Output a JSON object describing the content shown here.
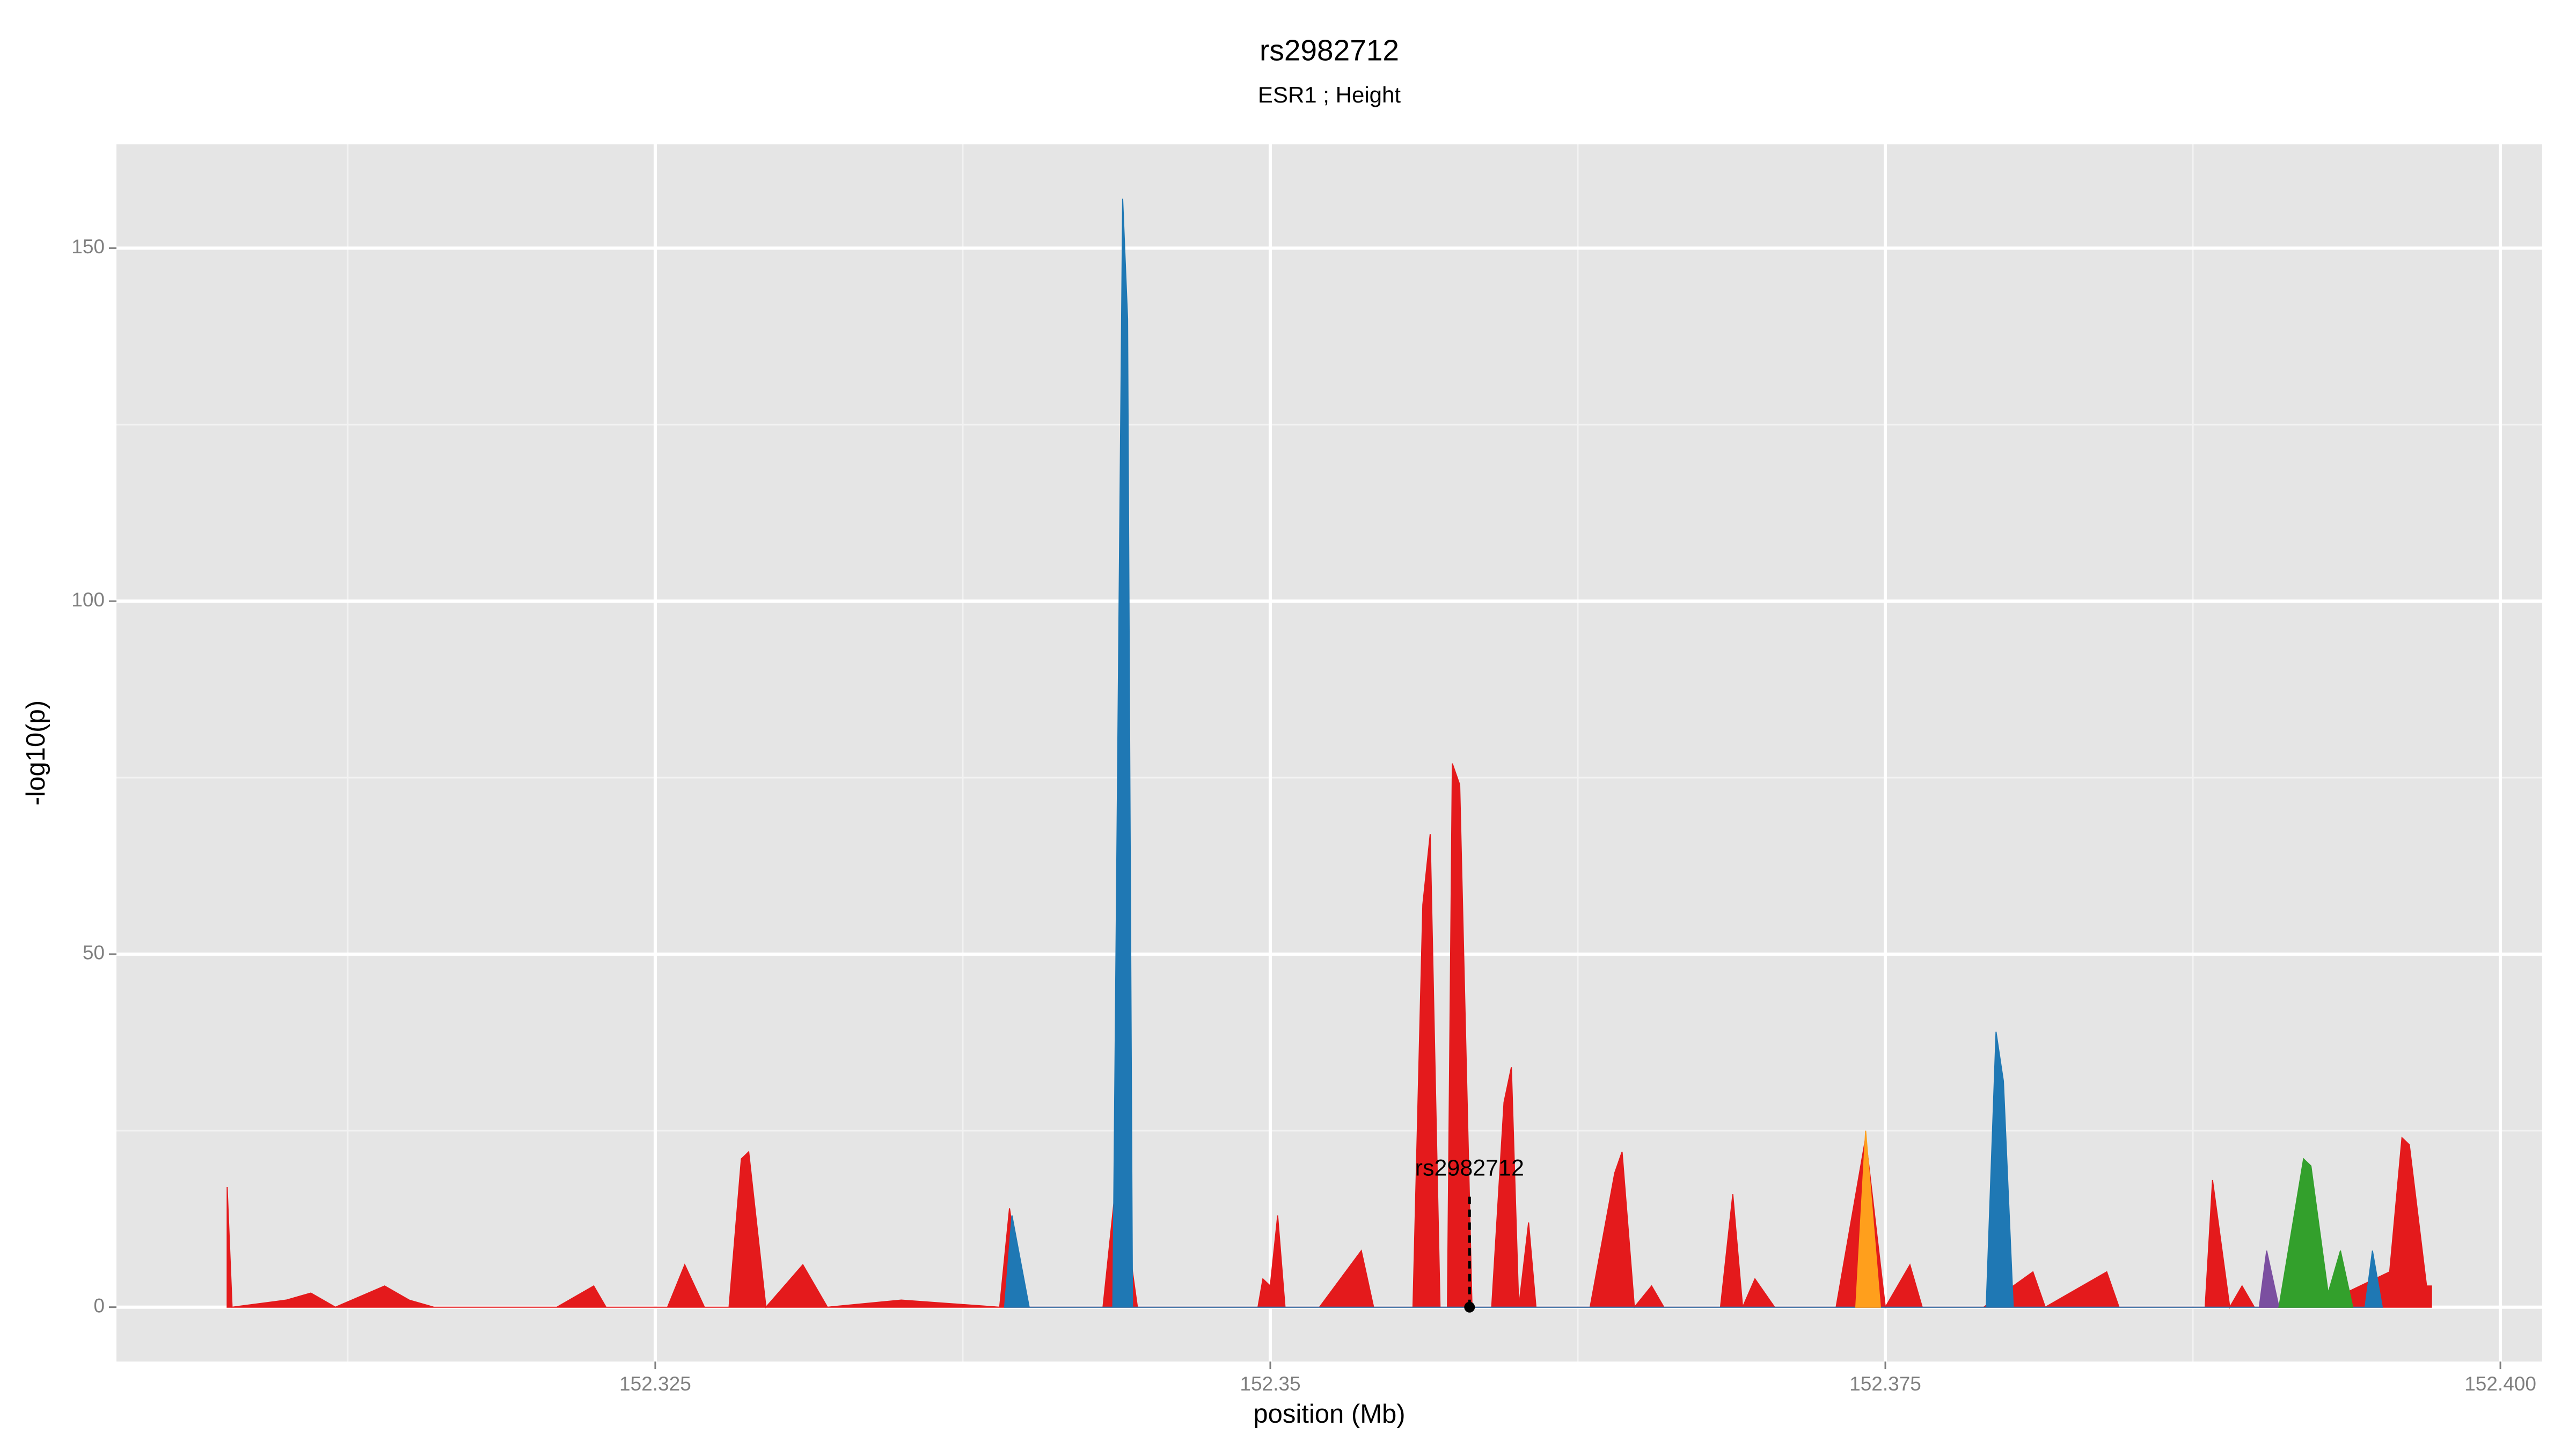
{
  "chart_data": {
    "type": "area",
    "title": "rs2982712",
    "subtitle": "ESR1 ; Height",
    "x_label": "position (Mb)",
    "y_label": "-log10(p)",
    "xlim": [
      152.3031,
      152.4017
    ],
    "ylim": [
      -7.7,
      164.7
    ],
    "xticks": [
      152.325,
      152.35,
      152.375,
      {
        "value": 152.4,
        "label": "152.400"
      }
    ],
    "yticks": [
      0,
      50,
      100,
      150
    ],
    "grid": true,
    "series": [
      {
        "name": "red",
        "color": "#e41a1c",
        "x": [
          152.3076,
          152.3078,
          152.31,
          152.311,
          152.312,
          152.314,
          152.315,
          152.316,
          152.321,
          152.3225,
          152.323,
          152.3255,
          152.3262,
          152.327,
          152.328,
          152.3285,
          152.3288,
          152.3295,
          152.331,
          152.332,
          152.335,
          152.339,
          152.3394,
          152.34,
          152.3432,
          152.3438,
          152.3446,
          152.3495,
          152.3497,
          152.35,
          152.3503,
          152.3506,
          152.352,
          152.3537,
          152.3542,
          152.3558,
          152.3562,
          152.3565,
          152.3569,
          152.3572,
          152.3574,
          152.3577,
          152.3582,
          152.359,
          152.3595,
          152.3598,
          152.3601,
          152.3605,
          152.3608,
          152.363,
          152.364,
          152.3643,
          152.3648,
          152.3655,
          152.366,
          152.3683,
          152.3688,
          152.3692,
          152.3697,
          152.3705,
          152.373,
          152.3742,
          152.375,
          152.376,
          152.3765,
          152.379,
          152.381,
          152.3815,
          152.384,
          152.3845,
          152.388,
          152.3883,
          152.389,
          152.3895,
          152.39,
          152.3918,
          152.3925,
          152.3955,
          152.396,
          152.3963,
          152.397,
          152.3972
        ],
        "values": [
          17,
          0,
          1,
          2,
          0,
          3,
          1,
          0,
          0,
          3,
          0,
          0,
          6,
          0,
          0,
          21,
          22,
          0,
          6,
          0,
          1,
          0,
          14,
          0,
          0,
          20,
          0,
          0,
          4,
          3,
          13,
          0,
          0,
          8,
          0,
          0,
          57,
          67,
          0,
          0,
          77,
          74,
          0,
          0,
          29,
          34,
          0,
          12,
          0,
          0,
          19,
          22,
          0,
          3,
          0,
          0,
          16,
          0,
          4,
          0,
          0,
          24,
          0,
          6,
          0,
          0,
          5,
          0,
          5,
          0,
          0,
          18,
          0,
          3,
          0,
          0,
          0,
          5,
          24,
          23,
          3,
          3
        ]
      },
      {
        "name": "blue",
        "color": "#1f78b4",
        "x": [
          152.3392,
          152.3395,
          152.3402,
          152.3436,
          152.344,
          152.3442,
          152.3444,
          152.3791,
          152.3795,
          152.3798,
          152.3802,
          152.3945,
          152.3948,
          152.3952
        ],
        "values": [
          0,
          13,
          0,
          0,
          157,
          140,
          0,
          0,
          39,
          32,
          0,
          0,
          8,
          0
        ]
      },
      {
        "name": "orange",
        "color": "#ff9f1c",
        "x": [
          152.3738,
          152.3742,
          152.3748
        ],
        "values": [
          0,
          25,
          0
        ]
      },
      {
        "name": "purple",
        "color": "#7b4fa0",
        "x": [
          152.3902,
          152.3905,
          152.391
        ],
        "values": [
          0,
          8,
          0
        ]
      },
      {
        "name": "green",
        "color": "#33a02c",
        "x": [
          152.391,
          152.392,
          152.3923,
          152.393,
          152.3935,
          152.394
        ],
        "values": [
          0,
          21,
          20,
          2,
          8,
          0
        ]
      }
    ],
    "annotation": {
      "text": "rs2982712",
      "x": 152.3581,
      "y": 0
    }
  }
}
